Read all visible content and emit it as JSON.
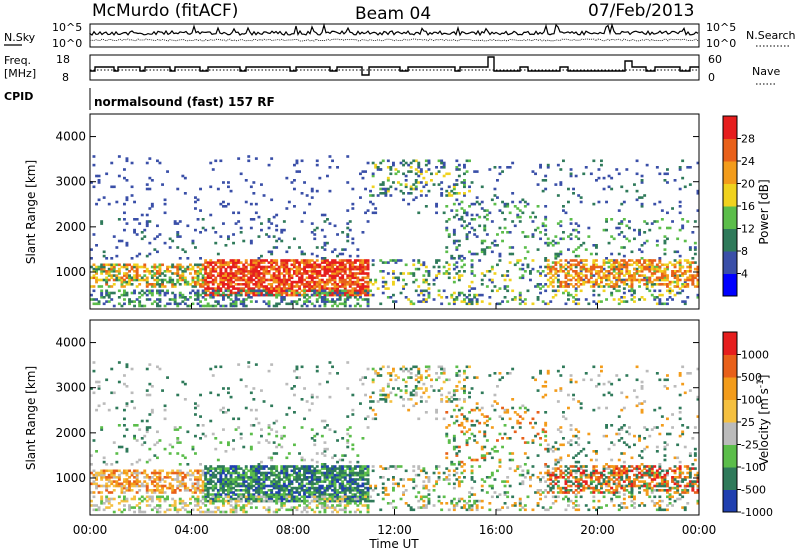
{
  "header": {
    "station": "McMurdo (fitACF)",
    "beam": "Beam 04",
    "date": "07/Feb/2013"
  },
  "left_labels": {
    "nsky": "N.Sky",
    "freq": "Freq.",
    "freq_unit": "[MHz]",
    "cpid": "CPID"
  },
  "right_labels": {
    "nsearch": "N.Search",
    "nave": "Nave"
  },
  "cpid_text": "normalsound (fast) 157 RF",
  "chart_data": [
    {
      "type": "line",
      "name": "noise-panel",
      "left_ticks": [
        "10^5",
        "10^0"
      ],
      "right_ticks": [
        "10^5",
        "10^0"
      ],
      "series": [
        {
          "name": "N.Sky"
        },
        {
          "name": "N.Search"
        }
      ]
    },
    {
      "type": "line",
      "name": "freq-nave-panel",
      "left_ticks": [
        "18",
        "8"
      ],
      "right_ticks": [
        "60",
        "0"
      ],
      "series": [
        {
          "name": "Freq."
        },
        {
          "name": "Nave"
        }
      ]
    },
    {
      "type": "heatmap",
      "name": "power-panel",
      "ylabel": "Slant Range [km]",
      "yticks": [
        "4000",
        "3000",
        "2000",
        "1000"
      ],
      "ylim": [
        180,
        4500
      ],
      "xlim": [
        0,
        24
      ],
      "colorbar": {
        "label": "Power [dB]",
        "ticks": [
          "28",
          "24",
          "20",
          "16",
          "12",
          "8",
          "4"
        ],
        "colors": [
          "#0000ff",
          "#3a4fa8",
          "#2f7a5a",
          "#5bbd4a",
          "#f0d21e",
          "#f39c1b",
          "#e8601a",
          "#e61e1e"
        ]
      }
    },
    {
      "type": "heatmap",
      "name": "velocity-panel",
      "ylabel": "Slant Range [km]",
      "xlabel": "Time UT",
      "yticks": [
        "4000",
        "3000",
        "2000",
        "1000"
      ],
      "ylim": [
        180,
        4500
      ],
      "xlim": [
        0,
        24
      ],
      "xticks": [
        "00:00",
        "04:00",
        "08:00",
        "12:00",
        "16:00",
        "20:00",
        "00:00"
      ],
      "colorbar": {
        "label": "Velocity [m s^-1]",
        "ticks": [
          "1000",
          "500",
          "100",
          "25",
          "-25",
          "-100",
          "-500",
          "-1000"
        ],
        "colors": [
          "#2040b0",
          "#2f7a5a",
          "#5bbd4a",
          "#bbbbbb",
          "#f5c040",
          "#f39c1b",
          "#e8601a",
          "#e61e1e"
        ]
      }
    }
  ]
}
